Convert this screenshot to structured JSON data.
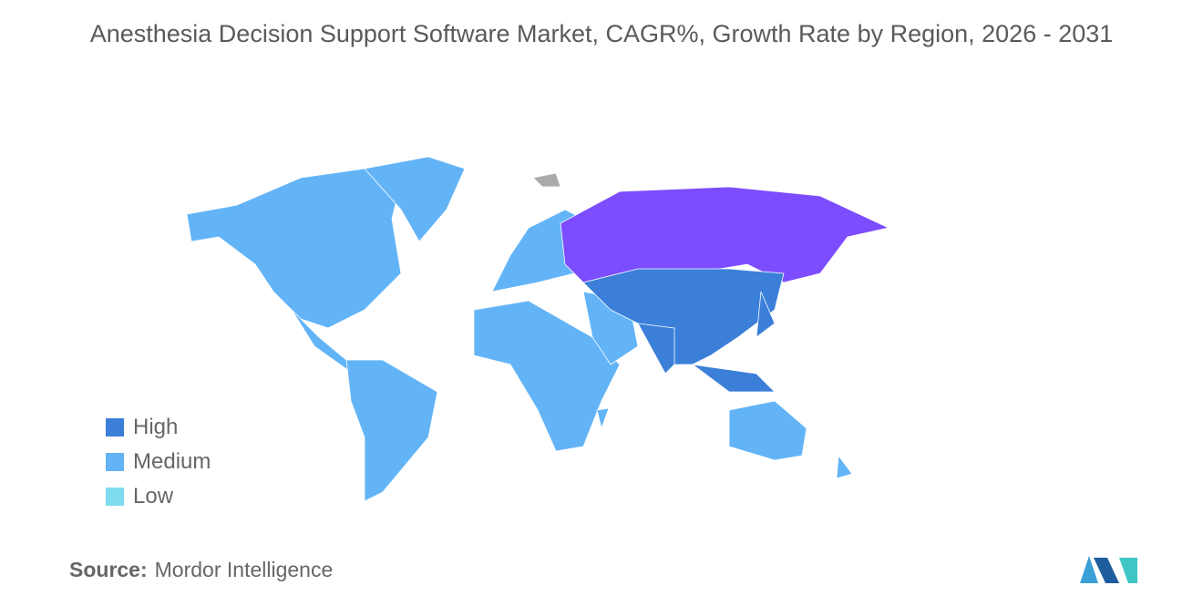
{
  "title": "Anesthesia Decision Support Software Market, CAGR%, Growth Rate by Region, 2026 - 2031",
  "legend": [
    {
      "label": "High",
      "color": "#3b7fd9"
    },
    {
      "label": "Medium",
      "color": "#63b4f7"
    },
    {
      "label": "Low",
      "color": "#7fdcef"
    }
  ],
  "source": {
    "label": "Source:",
    "text": "Mordor Intelligence"
  }
}
